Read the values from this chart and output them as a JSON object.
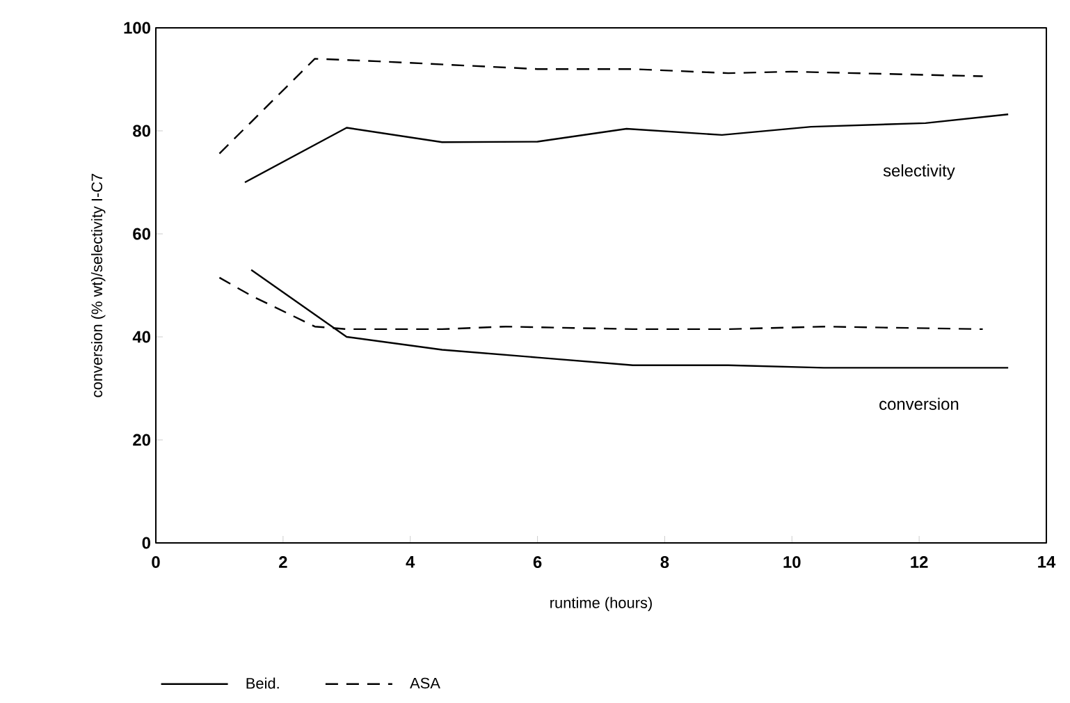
{
  "chart_data": {
    "type": "line",
    "xlabel": "runtime (hours)",
    "ylabel": "conversion (% wt)/selectivity I-C7",
    "xlim": [
      0,
      14
    ],
    "ylim": [
      0,
      100
    ],
    "xticks": [
      0,
      2,
      4,
      6,
      8,
      10,
      12,
      14
    ],
    "yticks": [
      0,
      20,
      40,
      60,
      80,
      100
    ],
    "grid": false,
    "legend": "bottom",
    "marker": "none",
    "annotations": [
      "selectivity",
      "conversion"
    ],
    "series": [
      {
        "name": "Beid.",
        "color": "#000000",
        "line_style": "solid",
        "x": [
          1.4,
          3,
          4.5,
          6,
          7.4,
          8.9,
          10.3,
          12.1,
          13.4
        ],
        "values": [
          70,
          80.6,
          77.8,
          77.9,
          80.4,
          79.2,
          80.8,
          81.5,
          83.2
        ]
      },
      {
        "name": "ASA",
        "color": "#000000",
        "line_style": "dashed",
        "x": [
          1,
          2.5,
          3.5,
          6,
          7.5,
          9,
          10,
          13
        ],
        "values": [
          75.6,
          94,
          93.5,
          92,
          92,
          91.2,
          91.5,
          90.6
        ]
      },
      {
        "color": "#000000",
        "line_style": "solid",
        "x": [
          1.5,
          3,
          4.5,
          6,
          7.5,
          9,
          10.5,
          12,
          13.4
        ],
        "values": [
          53,
          40,
          37.5,
          36,
          34.5,
          34.5,
          34,
          34,
          34
        ]
      },
      {
        "color": "#000000",
        "line_style": "dashed",
        "x": [
          1,
          1.5,
          2.5,
          3,
          4.5,
          5.5,
          7.5,
          9,
          10.5,
          13
        ],
        "values": [
          51.5,
          48,
          42,
          41.5,
          41.5,
          42,
          41.5,
          41.5,
          42,
          41.5
        ]
      }
    ]
  }
}
